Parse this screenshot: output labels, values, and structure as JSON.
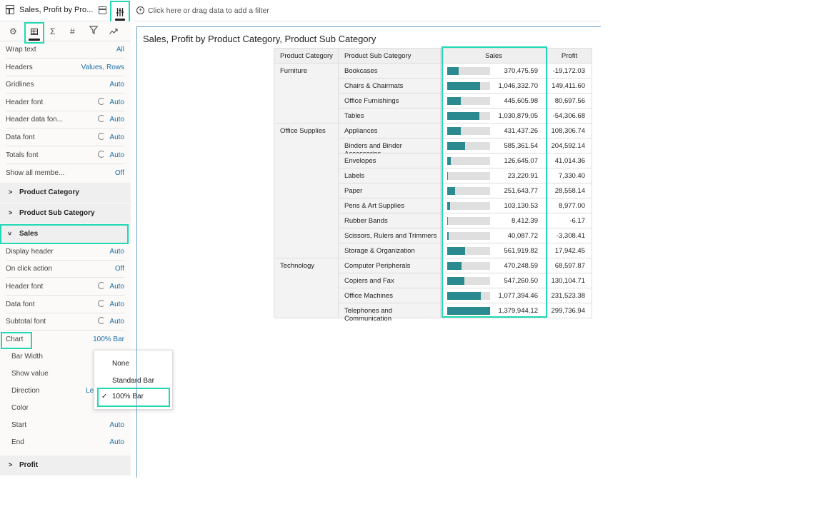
{
  "app": {
    "title": "Sales, Profit by Pro...",
    "filter_placeholder": "Click here or drag data to add a filter"
  },
  "panel": {
    "tabs": [
      "gear-icon",
      "table-icon",
      "sigma-icon",
      "hash-icon",
      "filter-icon",
      "analytics-icon"
    ],
    "general": [
      {
        "label": "Wrap text",
        "value": "All"
      },
      {
        "label": "Headers",
        "value": "Values, Rows"
      },
      {
        "label": "Gridlines",
        "value": "Auto"
      },
      {
        "label": "Header font",
        "value": "Auto"
      },
      {
        "label": "Header data fon...",
        "value": "Auto"
      },
      {
        "label": "Data font",
        "value": "Auto"
      },
      {
        "label": "Totals font",
        "value": "Auto"
      },
      {
        "label": "Show all membe...",
        "value": "Off"
      }
    ],
    "sections": {
      "product_category": "Product Category",
      "product_sub_category": "Product Sub Category",
      "sales": "Sales",
      "profit": "Profit"
    },
    "sales_props": [
      {
        "label": "Display header",
        "value": "Auto"
      },
      {
        "label": "On click action",
        "value": "Off"
      },
      {
        "label": "Header font",
        "value": "Auto"
      },
      {
        "label": "Data font",
        "value": "Auto"
      },
      {
        "label": "Subtotal font",
        "value": "Auto"
      },
      {
        "label": "Chart",
        "value": "100% Bar"
      },
      {
        "label": "Bar Width",
        "value": ""
      },
      {
        "label": "Show value",
        "value": ""
      },
      {
        "label": "Direction",
        "value": "Lef"
      },
      {
        "label": "Color",
        "value": "Auto"
      },
      {
        "label": "Start",
        "value": "Auto"
      },
      {
        "label": "End",
        "value": "Auto"
      }
    ],
    "chart_dropdown": {
      "options": [
        "None",
        "Standard Bar",
        "100% Bar"
      ],
      "selected": "100% Bar"
    }
  },
  "viz": {
    "title": "Sales, Profit by Product Category, Product Sub Category",
    "headers": {
      "category": "Product Category",
      "sub_category": "Product Sub Category",
      "sales": "Sales",
      "profit": "Profit"
    },
    "categories": [
      {
        "name": "Furniture",
        "rows": 4
      },
      {
        "name": "Office Supplies",
        "rows": 9
      },
      {
        "name": "Technology",
        "rows": 4
      }
    ],
    "bar_color": "#2a8a8f",
    "rows": [
      {
        "sub": "Bookcases",
        "sales": "370,475.59",
        "profit": "-19,172.03",
        "fraction": 0.27
      },
      {
        "sub": "Chairs & Chairmats",
        "sales": "1,046,332.70",
        "profit": "149,411.60",
        "fraction": 0.76
      },
      {
        "sub": "Office Furnishings",
        "sales": "445,605.98",
        "profit": "80,697.56",
        "fraction": 0.32
      },
      {
        "sub": "Tables",
        "sales": "1,030,879.05",
        "profit": "-54,306.68",
        "fraction": 0.75
      },
      {
        "sub": "Appliances",
        "sales": "431,437.26",
        "profit": "108,306.74",
        "fraction": 0.31
      },
      {
        "sub": "Binders and Binder Accessories",
        "sales": "585,361.54",
        "profit": "204,592.14",
        "fraction": 0.42
      },
      {
        "sub": "Envelopes",
        "sales": "126,645.07",
        "profit": "41,014.36",
        "fraction": 0.09
      },
      {
        "sub": "Labels",
        "sales": "23,220.91",
        "profit": "7,330.40",
        "fraction": 0.02
      },
      {
        "sub": "Paper",
        "sales": "251,643.77",
        "profit": "28,558.14",
        "fraction": 0.18
      },
      {
        "sub": "Pens & Art Supplies",
        "sales": "103,130.53",
        "profit": "8,977.00",
        "fraction": 0.07
      },
      {
        "sub": "Rubber Bands",
        "sales": "8,412.39",
        "profit": "-6.17",
        "fraction": 0.01
      },
      {
        "sub": "Scissors, Rulers and Trimmers",
        "sales": "40,087.72",
        "profit": "-3,308.41",
        "fraction": 0.03
      },
      {
        "sub": "Storage & Organization",
        "sales": "561,919.82",
        "profit": "17,942.45",
        "fraction": 0.41
      },
      {
        "sub": "Computer Peripherals",
        "sales": "470,248.59",
        "profit": "68,597.87",
        "fraction": 0.34
      },
      {
        "sub": "Copiers and Fax",
        "sales": "547,260.50",
        "profit": "130,104.71",
        "fraction": 0.4
      },
      {
        "sub": "Office Machines",
        "sales": "1,077,394.46",
        "profit": "231,523.38",
        "fraction": 0.78
      },
      {
        "sub": "Telephones and Communication",
        "sales": "1,379,944.12",
        "profit": "299,736.94",
        "fraction": 1.0
      }
    ]
  }
}
